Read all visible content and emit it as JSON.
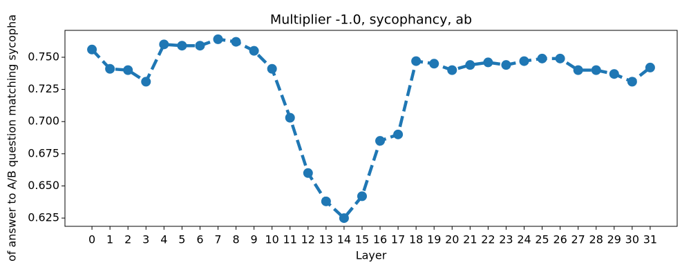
{
  "chart_data": {
    "type": "line",
    "title": "Multiplier -1.0, sycophancy, ab",
    "xlabel": "Layer",
    "ylabel": "of answer to A/B question matching sycopha",
    "x": [
      0,
      1,
      2,
      3,
      4,
      5,
      6,
      7,
      8,
      9,
      10,
      11,
      12,
      13,
      14,
      15,
      16,
      17,
      18,
      19,
      20,
      21,
      22,
      23,
      24,
      25,
      26,
      27,
      28,
      29,
      30,
      31
    ],
    "series": [
      {
        "name": "sycophancy",
        "color": "#1f77b4",
        "values": [
          0.756,
          0.741,
          0.74,
          0.731,
          0.76,
          0.759,
          0.759,
          0.764,
          0.762,
          0.755,
          0.741,
          0.703,
          0.66,
          0.638,
          0.625,
          0.642,
          0.685,
          0.69,
          0.747,
          0.745,
          0.74,
          0.744,
          0.746,
          0.744,
          0.747,
          0.749,
          0.749,
          0.74,
          0.74,
          0.737,
          0.731,
          0.742
        ]
      }
    ],
    "xlim": [
      -1.5,
      32.5
    ],
    "xticks": [
      0,
      1,
      2,
      3,
      4,
      5,
      6,
      7,
      8,
      9,
      10,
      11,
      12,
      13,
      14,
      15,
      16,
      17,
      18,
      19,
      20,
      21,
      22,
      23,
      24,
      25,
      26,
      27,
      28,
      29,
      30,
      31
    ],
    "ylim": [
      0.6186,
      0.7709
    ],
    "yticks": [
      0.625,
      {
        "value": 0.65,
        "label": "0.650"
      },
      0.675,
      {
        "value": 0.7,
        "label": "0.700"
      },
      0.725,
      {
        "value": 0.75,
        "label": "0.750"
      }
    ],
    "grid": false
  }
}
